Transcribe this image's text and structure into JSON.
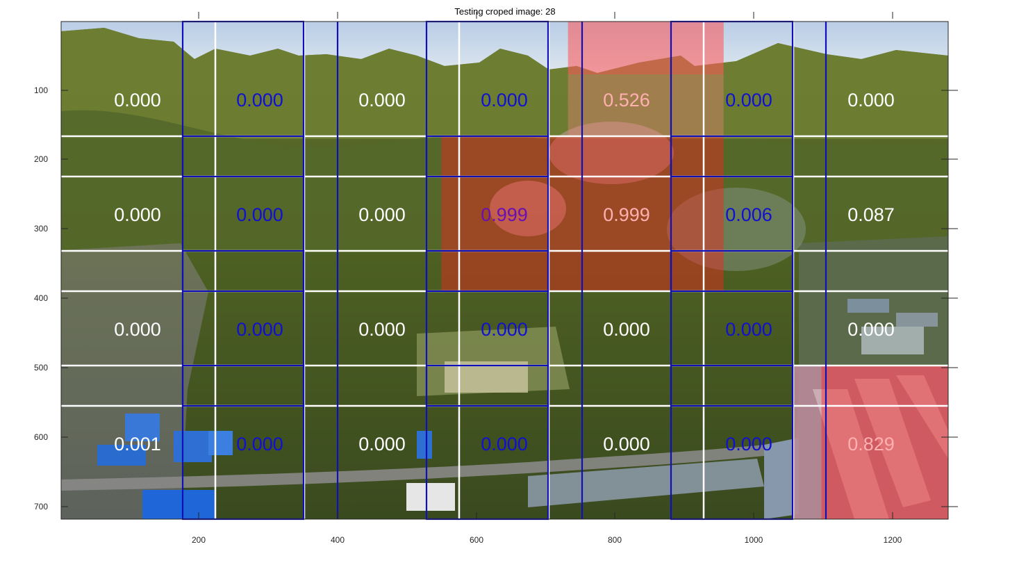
{
  "figure": {
    "title": "Testing croped image: 28"
  },
  "axes": {
    "x_ticks": [
      "200",
      "400",
      "600",
      "800",
      "1000",
      "1200"
    ],
    "y_ticks": [
      "100",
      "200",
      "300",
      "400",
      "500",
      "600",
      "700"
    ]
  },
  "grid": {
    "rows": 4,
    "cols": 7,
    "scores": [
      [
        "0.000",
        "0.000",
        "0.000",
        "0.000",
        "0.526",
        "0.000",
        "0.000"
      ],
      [
        "0.000",
        "0.000",
        "0.000",
        "0.999",
        "0.999",
        "0.006",
        "0.087"
      ],
      [
        "0.000",
        "0.000",
        "0.000",
        "0.000",
        "0.000",
        "0.000",
        "0.000"
      ],
      [
        "0.001",
        "0.000",
        "0.000",
        "0.000",
        "0.000",
        "0.000",
        "0.829"
      ]
    ],
    "highlighted_cells": [
      [
        0,
        4
      ],
      [
        1,
        3
      ],
      [
        1,
        4
      ],
      [
        3,
        6
      ]
    ]
  },
  "colors": {
    "odd_column_text": "#ffffff",
    "even_column_text": "#1010d0",
    "highlight_text": "#ffb0b0",
    "highlight_fill": "#ff2020",
    "white_grid": "#ffffff",
    "blue_grid": "#1010b8"
  }
}
